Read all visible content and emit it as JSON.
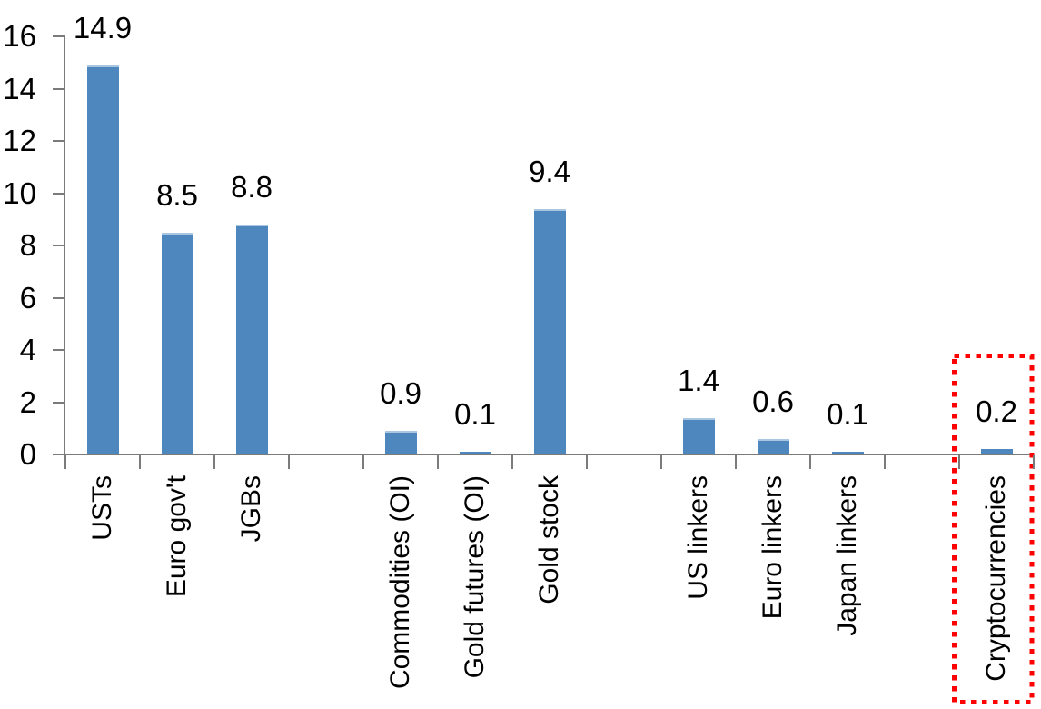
{
  "chart_data": {
    "type": "bar",
    "title": "",
    "xlabel": "",
    "ylabel": "",
    "categories": [
      "USTs",
      "Euro gov't",
      "JGBs",
      "Commodities (OI)",
      "Gold futures (OI)",
      "Gold stock",
      "US linkers",
      "Euro linkers",
      "Japan linkers",
      "Cryptocurrencies"
    ],
    "values": [
      14.9,
      8.5,
      8.8,
      0.9,
      0.1,
      9.4,
      1.4,
      0.6,
      0.1,
      0.2
    ],
    "data_labels": [
      "14.9",
      "8.5",
      "8.8",
      "0.9",
      "0.1",
      "9.4",
      "1.4",
      "0.6",
      "0.1",
      "0.2"
    ],
    "slot_positions": [
      0,
      1,
      2,
      4,
      5,
      6,
      8,
      9,
      10,
      12
    ],
    "total_slots": 13,
    "y_ticks": [
      0,
      2,
      4,
      6,
      8,
      10,
      12,
      14,
      16
    ],
    "ylim": [
      0,
      16
    ],
    "grid": false,
    "legend": false,
    "bar_color": "#4E87BE",
    "bar_top_edge_color": "#A9C7E0",
    "axis_color": "#7B7B7B",
    "label_color": "#000000",
    "highlight": {
      "category": "Cryptocurrencies",
      "box_color": "#FF0000",
      "box_style": "dotted-rectangle"
    }
  }
}
